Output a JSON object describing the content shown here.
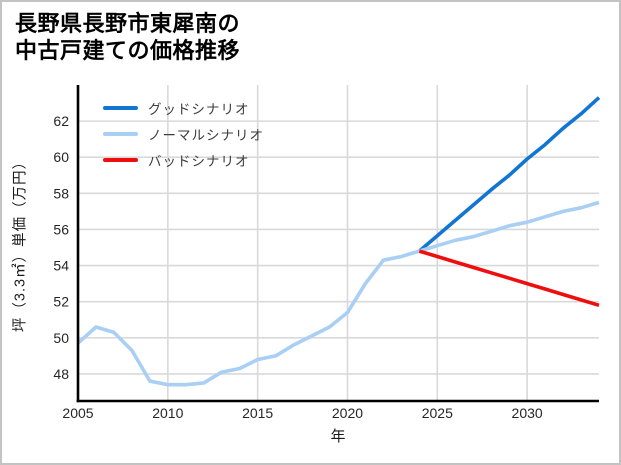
{
  "title": {
    "line1": "長野県長野市東犀南の",
    "line2": "中古戸建ての価格推移"
  },
  "legend": {
    "items": [
      {
        "label": "グッドシナリオ"
      },
      {
        "label": "ノーマルシナリオ"
      },
      {
        "label": "バッドシナリオ"
      }
    ]
  },
  "axes": {
    "x_label": "年",
    "y_label": "坪（3.3㎡）単価（万円）"
  },
  "chart_data": {
    "type": "line",
    "title": "長野県長野市東犀南の中古戸建ての価格推移",
    "xlabel": "年",
    "ylabel": "坪（3.3㎡）単価（万円）",
    "xlim": [
      2005,
      2034
    ],
    "ylim": [
      46.5,
      64.0
    ],
    "x_ticks": [
      2005,
      2010,
      2015,
      2020,
      2025,
      2030
    ],
    "y_ticks": [
      48,
      50,
      52,
      54,
      56,
      58,
      60,
      62
    ],
    "grid": true,
    "grid_color": "#d9d9d9",
    "spine_color": "#000000",
    "tick_label_color": "#262626",
    "legend_position": "upper-left",
    "series": [
      {
        "id": "good-scenario",
        "name": "グッドシナリオ",
        "color": "#1176d2",
        "x": [
          2024,
          2025,
          2026,
          2027,
          2028,
          2029,
          2030,
          2031,
          2032,
          2033,
          2034
        ],
        "values": [
          54.8,
          55.65,
          56.5,
          57.35,
          58.2,
          59.0,
          59.9,
          60.7,
          61.6,
          62.4,
          63.3
        ]
      },
      {
        "id": "normal-scenario",
        "name": "ノーマルシナリオ",
        "color": "#a9cff4",
        "x": [
          2005,
          2006,
          2007,
          2008,
          2009,
          2010,
          2011,
          2012,
          2013,
          2014,
          2015,
          2016,
          2017,
          2018,
          2019,
          2020,
          2021,
          2022,
          2023,
          2024,
          2025,
          2026,
          2027,
          2028,
          2029,
          2030,
          2031,
          2032,
          2033,
          2034
        ],
        "values": [
          49.7,
          50.6,
          50.3,
          49.3,
          47.6,
          47.4,
          47.4,
          47.5,
          48.1,
          48.3,
          48.8,
          49.0,
          49.6,
          50.1,
          50.6,
          51.4,
          53.0,
          54.3,
          54.5,
          54.8,
          55.1,
          55.4,
          55.6,
          55.9,
          56.2,
          56.4,
          56.7,
          57.0,
          57.2,
          57.5
        ]
      },
      {
        "id": "bad-scenario",
        "name": "バッドシナリオ",
        "color": "#ef0e0e",
        "x": [
          2024,
          2025,
          2026,
          2027,
          2028,
          2029,
          2030,
          2031,
          2032,
          2033,
          2034
        ],
        "values": [
          54.8,
          54.5,
          54.2,
          53.9,
          53.6,
          53.3,
          53.0,
          52.7,
          52.4,
          52.1,
          51.8
        ]
      }
    ]
  }
}
